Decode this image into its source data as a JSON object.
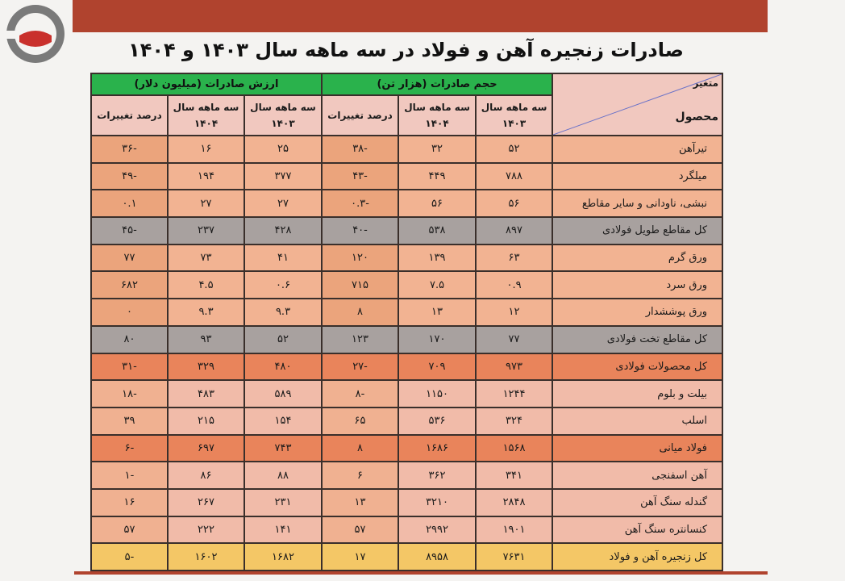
{
  "title": "صادرات زنجیره آهن و فولاد در سه ماهه سال ۱۴۰۳ و ۱۴۰۴",
  "colors": {
    "header_green": "#2ab24c",
    "top_bar": "#b0432e",
    "gray_row": "#a8a19f",
    "highlight_row": "#e9845b",
    "total_row": "#f4c766"
  },
  "header": {
    "corner_top": "متغیر",
    "corner_bottom": "محصول",
    "group_volume": "حجم صادرات (هزار تن)",
    "group_value": "ارزش صادرات (میلیون دلار)",
    "col_1403": "سه ماهه سال ۱۴۰۳",
    "col_1404": "سه ماهه سال ۱۴۰۴",
    "col_pct": "درصد تغییرات"
  },
  "rows": [
    {
      "label": "تیرآهن",
      "style": "norm",
      "v03": "۵۲",
      "v04": "۳۲",
      "vp": "-۳۸",
      "d03": "۲۵",
      "d04": "۱۶",
      "dp": "-۳۶"
    },
    {
      "label": "میلگرد",
      "style": "norm",
      "v03": "۷۸۸",
      "v04": "۴۴۹",
      "vp": "-۴۳",
      "d03": "۳۷۷",
      "d04": "۱۹۴",
      "dp": "-۴۹"
    },
    {
      "label": "نبشی، ناودانی و سایر مقاطع",
      "style": "norm",
      "v03": "۵۶",
      "v04": "۵۶",
      "vp": "-۰.۳",
      "d03": "۲۷",
      "d04": "۲۷",
      "dp": "۰.۱"
    },
    {
      "label": "کل مقاطع طویل فولادی",
      "style": "gray",
      "v03": "۸۹۷",
      "v04": "۵۳۸",
      "vp": "-۴۰",
      "d03": "۴۲۸",
      "d04": "۲۳۷",
      "dp": "-۴۵"
    },
    {
      "label": "ورق گرم",
      "style": "norm",
      "v03": "۶۳",
      "v04": "۱۳۹",
      "vp": "۱۲۰",
      "d03": "۴۱",
      "d04": "۷۳",
      "dp": "۷۷"
    },
    {
      "label": "ورق سرد",
      "style": "norm",
      "v03": "۰.۹",
      "v04": "۷.۵",
      "vp": "۷۱۵",
      "d03": "۰.۶",
      "d04": "۴.۵",
      "dp": "۶۸۲"
    },
    {
      "label": "ورق پوششدار",
      "style": "norm",
      "v03": "۱۲",
      "v04": "۱۳",
      "vp": "۸",
      "d03": "۹.۳",
      "d04": "۹.۳",
      "dp": "۰"
    },
    {
      "label": "کل مقاطع تخت فولادی",
      "style": "gray",
      "v03": "۷۷",
      "v04": "۱۷۰",
      "vp": "۱۲۳",
      "d03": "۵۲",
      "d04": "۹۳",
      "dp": "۸۰"
    },
    {
      "label": "کل محصولات فولادی",
      "style": "hi",
      "v03": "۹۷۳",
      "v04": "۷۰۹",
      "vp": "-۲۷",
      "d03": "۴۸۰",
      "d04": "۳۲۹",
      "dp": "-۳۱"
    },
    {
      "label": "بیلت و بلوم",
      "style": "pink",
      "v03": "۱۲۴۴",
      "v04": "۱۱۵۰",
      "vp": "-۸",
      "d03": "۵۸۹",
      "d04": "۴۸۳",
      "dp": "-۱۸"
    },
    {
      "label": "اسلب",
      "style": "pink",
      "v03": "۳۲۴",
      "v04": "۵۳۶",
      "vp": "۶۵",
      "d03": "۱۵۴",
      "d04": "۲۱۵",
      "dp": "۳۹"
    },
    {
      "label": "فولاد میانی",
      "style": "hi",
      "v03": "۱۵۶۸",
      "v04": "۱۶۸۶",
      "vp": "۸",
      "d03": "۷۴۳",
      "d04": "۶۹۷",
      "dp": "-۶"
    },
    {
      "label": "آهن اسفنجی",
      "style": "pink",
      "v03": "۳۴۱",
      "v04": "۳۶۲",
      "vp": "۶",
      "d03": "۸۸",
      "d04": "۸۶",
      "dp": "-۱"
    },
    {
      "label": "گندله سنگ آهن",
      "style": "pink",
      "v03": "۲۸۴۸",
      "v04": "۳۲۱۰",
      "vp": "۱۳",
      "d03": "۲۳۱",
      "d04": "۲۶۷",
      "dp": "۱۶"
    },
    {
      "label": "کنسانتره سنگ آهن",
      "style": "pink",
      "v03": "۱۹۰۱",
      "v04": "۲۹۹۲",
      "vp": "۵۷",
      "d03": "۱۴۱",
      "d04": "۲۲۲",
      "dp": "۵۷"
    },
    {
      "label": "کل زنجیره آهن و فولاد",
      "style": "total",
      "v03": "۷۶۳۱",
      "v04": "۸۹۵۸",
      "vp": "۱۷",
      "d03": "۱۶۸۲",
      "d04": "۱۶۰۲",
      "dp": "-۵"
    }
  ]
}
